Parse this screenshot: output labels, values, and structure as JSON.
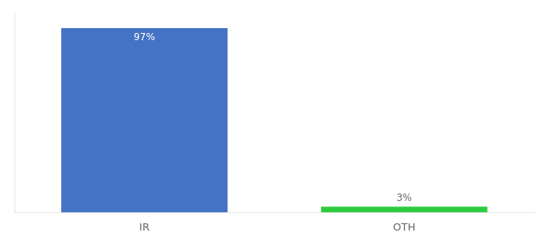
{
  "chart_data": {
    "type": "bar",
    "categories": [
      "IR",
      "OTH"
    ],
    "values": [
      97,
      3
    ],
    "colors": [
      "#4472C4",
      "#2ECC40"
    ],
    "value_labels": [
      "97%",
      "3%"
    ],
    "data_labels": true,
    "ylim": [
      0,
      105
    ],
    "tick_labels": "x",
    "grid": false
  }
}
